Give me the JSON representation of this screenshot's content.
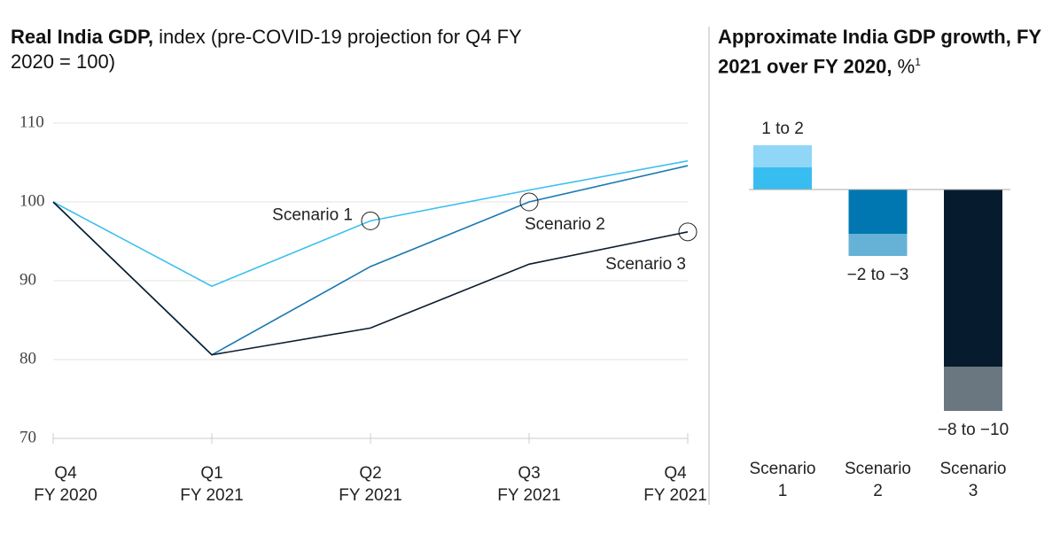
{
  "chart_data": [
    {
      "type": "line",
      "title": "Real India GDP,",
      "subtitle": "index (pre-COVID-19 projection for Q4 FY 2020 = 100)",
      "categories": [
        "Q4\nFY 2020",
        "Q1\nFY 2021",
        "Q2\nFY 2021",
        "Q3\nFY 2021",
        "Q4\nFY 2021"
      ],
      "series": [
        {
          "name": "Scenario 1",
          "color": "#3fbfef",
          "values": [
            100,
            89.3,
            97.6,
            101.5,
            105.2
          ]
        },
        {
          "name": "Scenario 2",
          "color": "#1a78b0",
          "values": [
            100,
            80.6,
            91.8,
            100,
            104.6
          ]
        },
        {
          "name": "Scenario 3",
          "color": "#0b1d2e",
          "values": [
            100,
            80.6,
            84.0,
            92.1,
            96.2
          ]
        }
      ],
      "ylim": [
        70,
        110
      ],
      "yticks": [
        70,
        80,
        90,
        100,
        110
      ],
      "grid": true
    },
    {
      "type": "range_bar",
      "title": "Approximate India GDP growth, FY 2021 over FY 2020,",
      "unit": "%",
      "footnote_marker": "1",
      "categories": [
        "Scenario\n1",
        "Scenario\n2",
        "Scenario\n3"
      ],
      "values": [
        1,
        -2,
        -8
      ],
      "values_end": [
        2,
        -3,
        -10
      ],
      "value_labels": [
        "1 to 2",
        "−2 to −3",
        "−8 to −10"
      ],
      "colors": [
        "#38bdf0",
        "#0077b0",
        "#061c2e"
      ],
      "colors_end": [
        "#8fd6f7",
        "#66b1d6",
        "#6b7780"
      ],
      "ylim": [
        -11,
        3
      ]
    }
  ]
}
